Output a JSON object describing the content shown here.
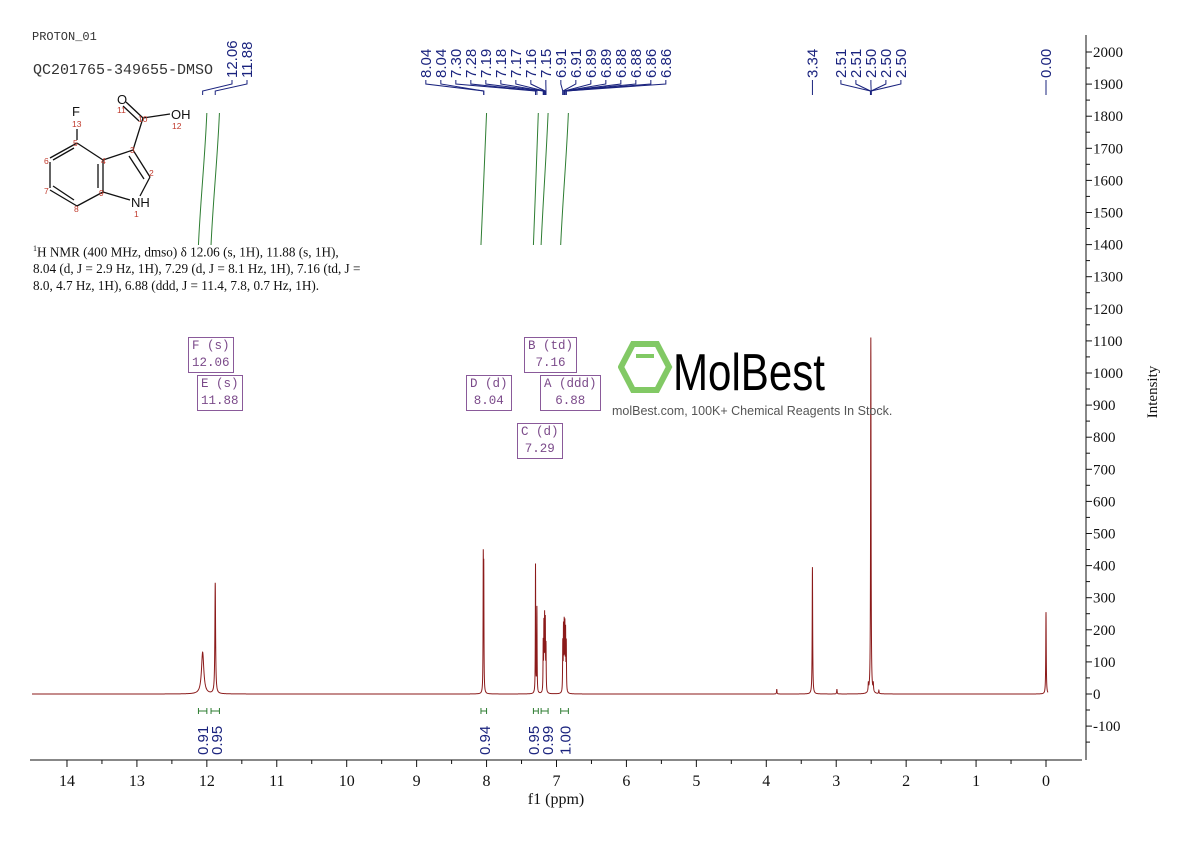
{
  "header": {
    "experiment": "PROTON_01",
    "sample": "QC201765-349655-DMSO"
  },
  "structure": {
    "atoms": [
      "F",
      "O",
      "OH",
      "NH"
    ],
    "numbers": [
      "1",
      "2",
      "3",
      "4",
      "5",
      "6",
      "7",
      "8",
      "9",
      "10",
      "11",
      "12",
      "13"
    ]
  },
  "description": {
    "prefix": "1",
    "text": "H NMR (400 MHz, dmso) δ 12.06 (s, 1H), 11.88 (s, 1H), 8.04 (d, J = 2.9 Hz, 1H), 7.29 (d, J = 8.1 Hz, 1H), 7.16 (td, J = 8.0, 4.7 Hz, 1H), 6.88 (ddd, J = 11.4, 7.8, 0.7 Hz, 1H)."
  },
  "multiplets": [
    {
      "id": "F",
      "type": "(s)",
      "shift": "12.06"
    },
    {
      "id": "E",
      "type": "(s)",
      "shift": "11.88"
    },
    {
      "id": "D",
      "type": "(d)",
      "shift": "8.04"
    },
    {
      "id": "B",
      "type": "(td)",
      "shift": "7.16"
    },
    {
      "id": "A",
      "type": "(ddd)",
      "shift": "6.88"
    },
    {
      "id": "C",
      "type": "(d)",
      "shift": "7.29"
    }
  ],
  "watermark": {
    "logo": "MolBest",
    "tagline": "molBest.com, 100K+ Chemical Reagents In Stock."
  },
  "colors": {
    "spectrum": "#8b1a1a",
    "peak_labels": "#1a237e",
    "integrals": "#2e7d32",
    "multiplet_boxes": "#7b4a8a",
    "logo_green": "#6cc04a"
  },
  "chart_data": {
    "type": "line",
    "title": "",
    "xlabel": "f1 (ppm)",
    "ylabel": "Intensity",
    "xlim": [
      14.5,
      -0.5
    ],
    "ylim": [
      -200,
      2050
    ],
    "x_reversed": true,
    "y_axis_side": "right",
    "grid": false,
    "x_ticks": [
      "14",
      "13",
      "12",
      "11",
      "10",
      "9",
      "8",
      "7",
      "6",
      "5",
      "4",
      "3",
      "2",
      "1",
      "0"
    ],
    "y_ticks": [
      "2000",
      "1900",
      "1800",
      "1700",
      "1600",
      "1500",
      "1400",
      "1300",
      "1200",
      "1100",
      "1000",
      "900",
      "800",
      "700",
      "600",
      "500",
      "400",
      "300",
      "200",
      "100",
      "0",
      "-100"
    ],
    "peak_labels": [
      "12.06",
      "11.88",
      "8.04",
      "8.04",
      "7.30",
      "7.28",
      "7.19",
      "7.18",
      "7.17",
      "7.16",
      "7.15",
      "6.91",
      "6.91",
      "6.89",
      "6.89",
      "6.88",
      "6.88",
      "6.86",
      "6.86",
      "3.34",
      "2.51",
      "2.51",
      "2.50",
      "2.50",
      "2.50",
      "0.00"
    ],
    "peaks": [
      {
        "ppm": 12.06,
        "intensity": 130,
        "width": 0.02
      },
      {
        "ppm": 11.88,
        "intensity": 345,
        "width": 0.006
      },
      {
        "ppm": 8.047,
        "intensity": 395,
        "width": 0.003
      },
      {
        "ppm": 8.04,
        "intensity": 360,
        "width": 0.003
      },
      {
        "ppm": 7.3,
        "intensity": 400,
        "width": 0.003
      },
      {
        "ppm": 7.28,
        "intensity": 265,
        "width": 0.003
      },
      {
        "ppm": 7.19,
        "intensity": 150,
        "width": 0.003
      },
      {
        "ppm": 7.18,
        "intensity": 200,
        "width": 0.003
      },
      {
        "ppm": 7.17,
        "intensity": 220,
        "width": 0.003
      },
      {
        "ppm": 7.16,
        "intensity": 210,
        "width": 0.003
      },
      {
        "ppm": 7.15,
        "intensity": 140,
        "width": 0.003
      },
      {
        "ppm": 6.91,
        "intensity": 150,
        "width": 0.003
      },
      {
        "ppm": 6.9,
        "intensity": 190,
        "width": 0.003
      },
      {
        "ppm": 6.89,
        "intensity": 200,
        "width": 0.003
      },
      {
        "ppm": 6.88,
        "intensity": 195,
        "width": 0.003
      },
      {
        "ppm": 6.87,
        "intensity": 180,
        "width": 0.003
      },
      {
        "ppm": 6.86,
        "intensity": 150,
        "width": 0.003
      },
      {
        "ppm": 3.85,
        "intensity": 15,
        "width": 0.004
      },
      {
        "ppm": 3.34,
        "intensity": 395,
        "width": 0.004
      },
      {
        "ppm": 2.99,
        "intensity": 15,
        "width": 0.004
      },
      {
        "ppm": 2.54,
        "intensity": 25,
        "width": 0.004
      },
      {
        "ppm": 2.505,
        "intensity": 1110,
        "width": 0.004
      },
      {
        "ppm": 2.47,
        "intensity": 25,
        "width": 0.004
      },
      {
        "ppm": 2.39,
        "intensity": 10,
        "width": 0.004
      },
      {
        "ppm": 0.0,
        "intensity": 255,
        "width": 0.004
      }
    ],
    "integrals": [
      {
        "from": 12.12,
        "to": 12.0,
        "value": "0.91"
      },
      {
        "from": 11.94,
        "to": 11.82,
        "value": "0.95"
      },
      {
        "from": 8.08,
        "to": 8.0,
        "value": "0.94"
      },
      {
        "from": 7.33,
        "to": 7.26,
        "value": "0.95"
      },
      {
        "from": 7.22,
        "to": 7.12,
        "value": "0.99"
      },
      {
        "from": 6.94,
        "to": 6.83,
        "value": "1.00"
      }
    ]
  }
}
